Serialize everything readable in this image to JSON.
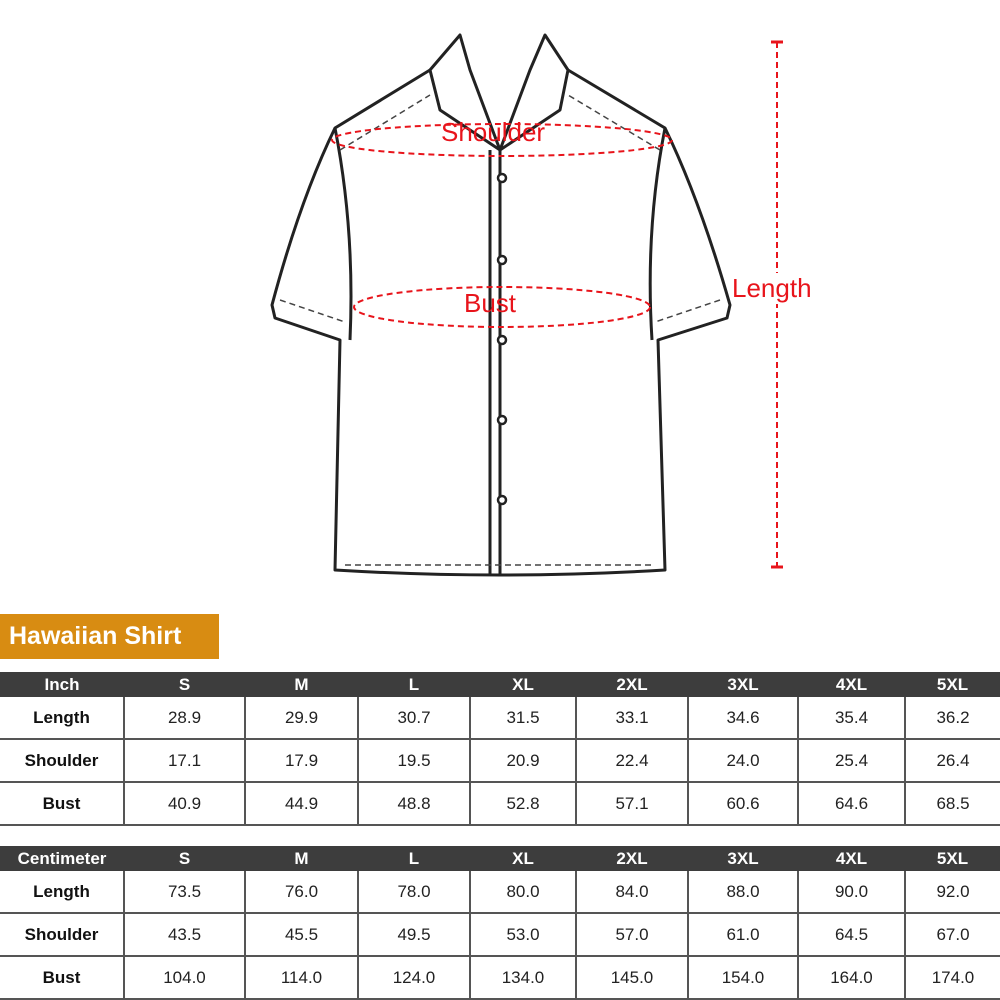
{
  "diagram": {
    "shoulder_label": "Shoulder",
    "bust_label": "Bust",
    "length_label": "Length",
    "accent_color": "#e8141b"
  },
  "title": "Hawaiian Shirt",
  "sizes": [
    "S",
    "M",
    "L",
    "XL",
    "2XL",
    "3XL",
    "4XL",
    "5XL"
  ],
  "inch": {
    "header": "Inch",
    "rows": [
      {
        "label": "Length",
        "values": [
          "28.9",
          "29.9",
          "30.7",
          "31.5",
          "33.1",
          "34.6",
          "35.4",
          "36.2"
        ]
      },
      {
        "label": "Shoulder",
        "values": [
          "17.1",
          "17.9",
          "19.5",
          "20.9",
          "22.4",
          "24.0",
          "25.4",
          "26.4"
        ]
      },
      {
        "label": "Bust",
        "values": [
          "40.9",
          "44.9",
          "48.8",
          "52.8",
          "57.1",
          "60.6",
          "64.6",
          "68.5"
        ]
      }
    ]
  },
  "cm": {
    "header": "Centimeter",
    "rows": [
      {
        "label": "Length",
        "values": [
          "73.5",
          "76.0",
          "78.0",
          "80.0",
          "84.0",
          "88.0",
          "90.0",
          "92.0"
        ]
      },
      {
        "label": "Shoulder",
        "values": [
          "43.5",
          "45.5",
          "49.5",
          "53.0",
          "57.0",
          "61.0",
          "64.5",
          "67.0"
        ]
      },
      {
        "label": "Bust",
        "values": [
          "104.0",
          "114.0",
          "124.0",
          "134.0",
          "145.0",
          "154.0",
          "164.0",
          "174.0"
        ]
      }
    ]
  }
}
